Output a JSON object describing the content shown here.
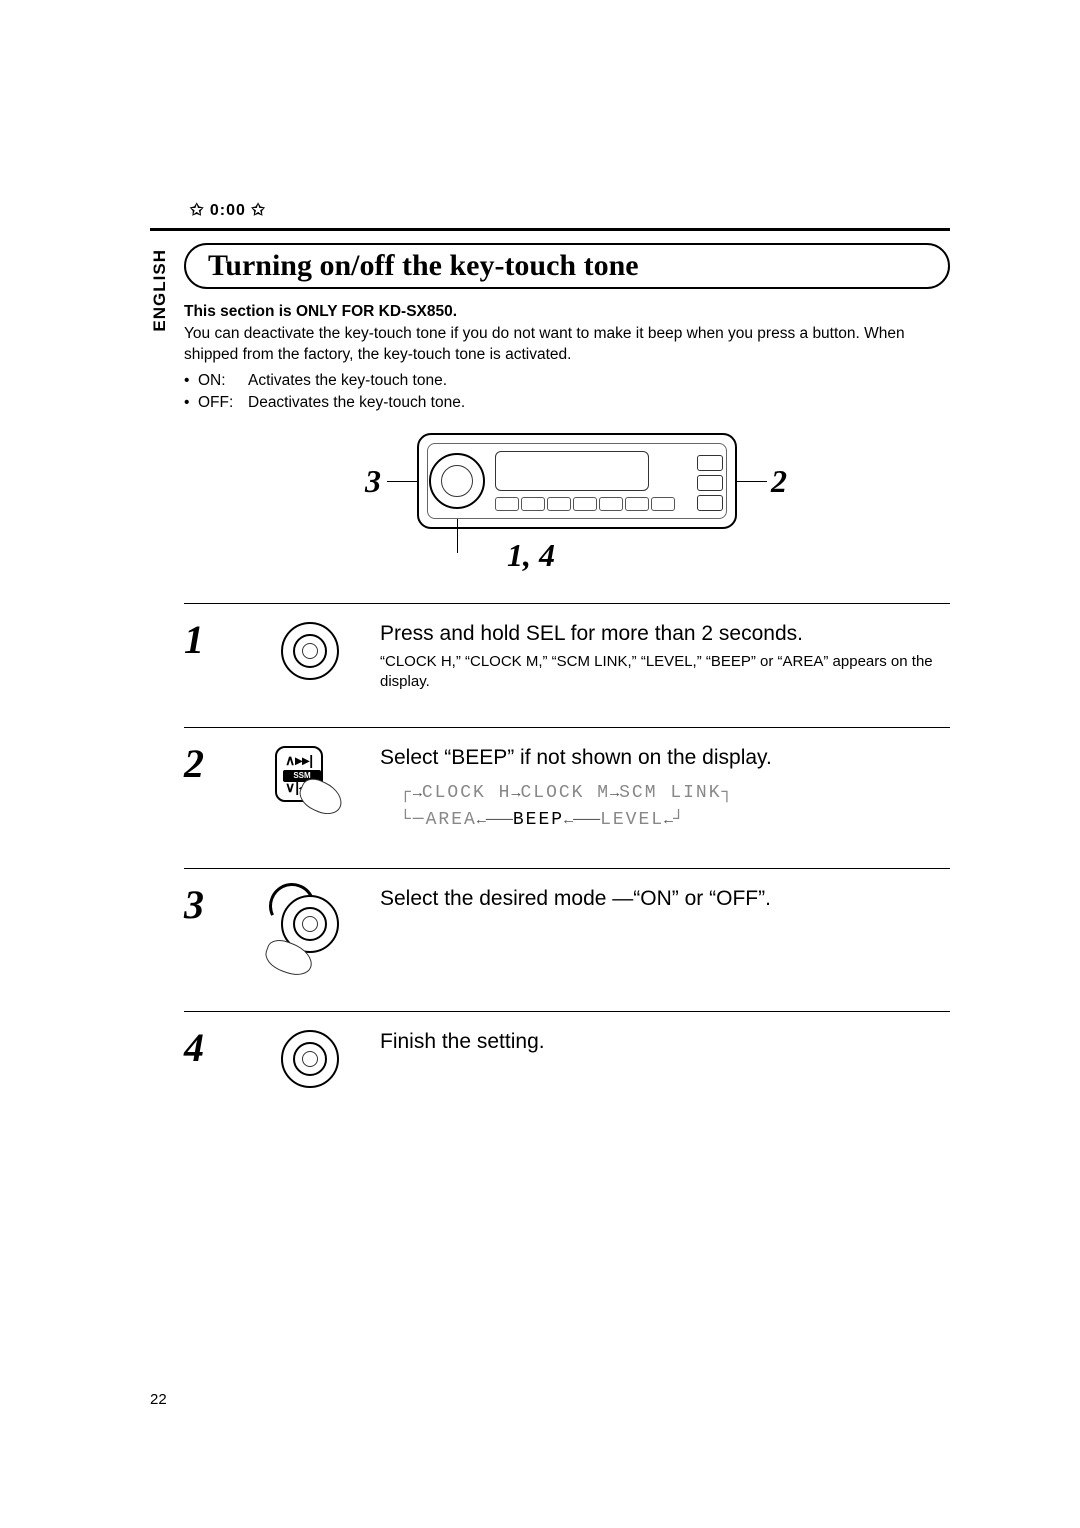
{
  "header": {
    "clock_icon_label": "✩ 0:00 ✩"
  },
  "language_tab": "ENGLISH",
  "section": {
    "title": "Turning on/off the key-touch tone",
    "model_note": "This section is ONLY FOR KD-SX850.",
    "intro": "You can deactivate the key-touch tone if you do not want to make it beep when you press a button. When shipped from the factory, the key-touch tone is activated.",
    "bullets": [
      {
        "label": "ON:",
        "text": "Activates the key-touch tone."
      },
      {
        "label": "OFF:",
        "text": "Deactivates the key-touch tone."
      }
    ]
  },
  "diagram": {
    "callout_3": "3",
    "callout_2": "2",
    "callout_14": "1, 4"
  },
  "steps": [
    {
      "num": "1",
      "heading": "Press and hold SEL for more than 2 seconds.",
      "sub": "“CLOCK H,” “CLOCK M,” “SCM LINK,” “LEVEL,” “BEEP” or “AREA” appears on the display."
    },
    {
      "num": "2",
      "heading": "Select “BEEP” if not shown on the display.",
      "ssm_label": "SSM",
      "seq_top": [
        {
          "t": "CLOCK H",
          "c": "light"
        },
        {
          "t": "CLOCK M",
          "c": "light"
        },
        {
          "t": "SCM LINK",
          "c": "light"
        }
      ],
      "seq_bottom": [
        {
          "t": "AREA",
          "c": "light"
        },
        {
          "t": "BEEP",
          "c": "dark"
        },
        {
          "t": "LEVEL",
          "c": "light"
        }
      ]
    },
    {
      "num": "3",
      "heading": "Select the desired mode —“ON” or “OFF”."
    },
    {
      "num": "4",
      "heading": "Finish the setting."
    }
  ],
  "page_number": "22"
}
